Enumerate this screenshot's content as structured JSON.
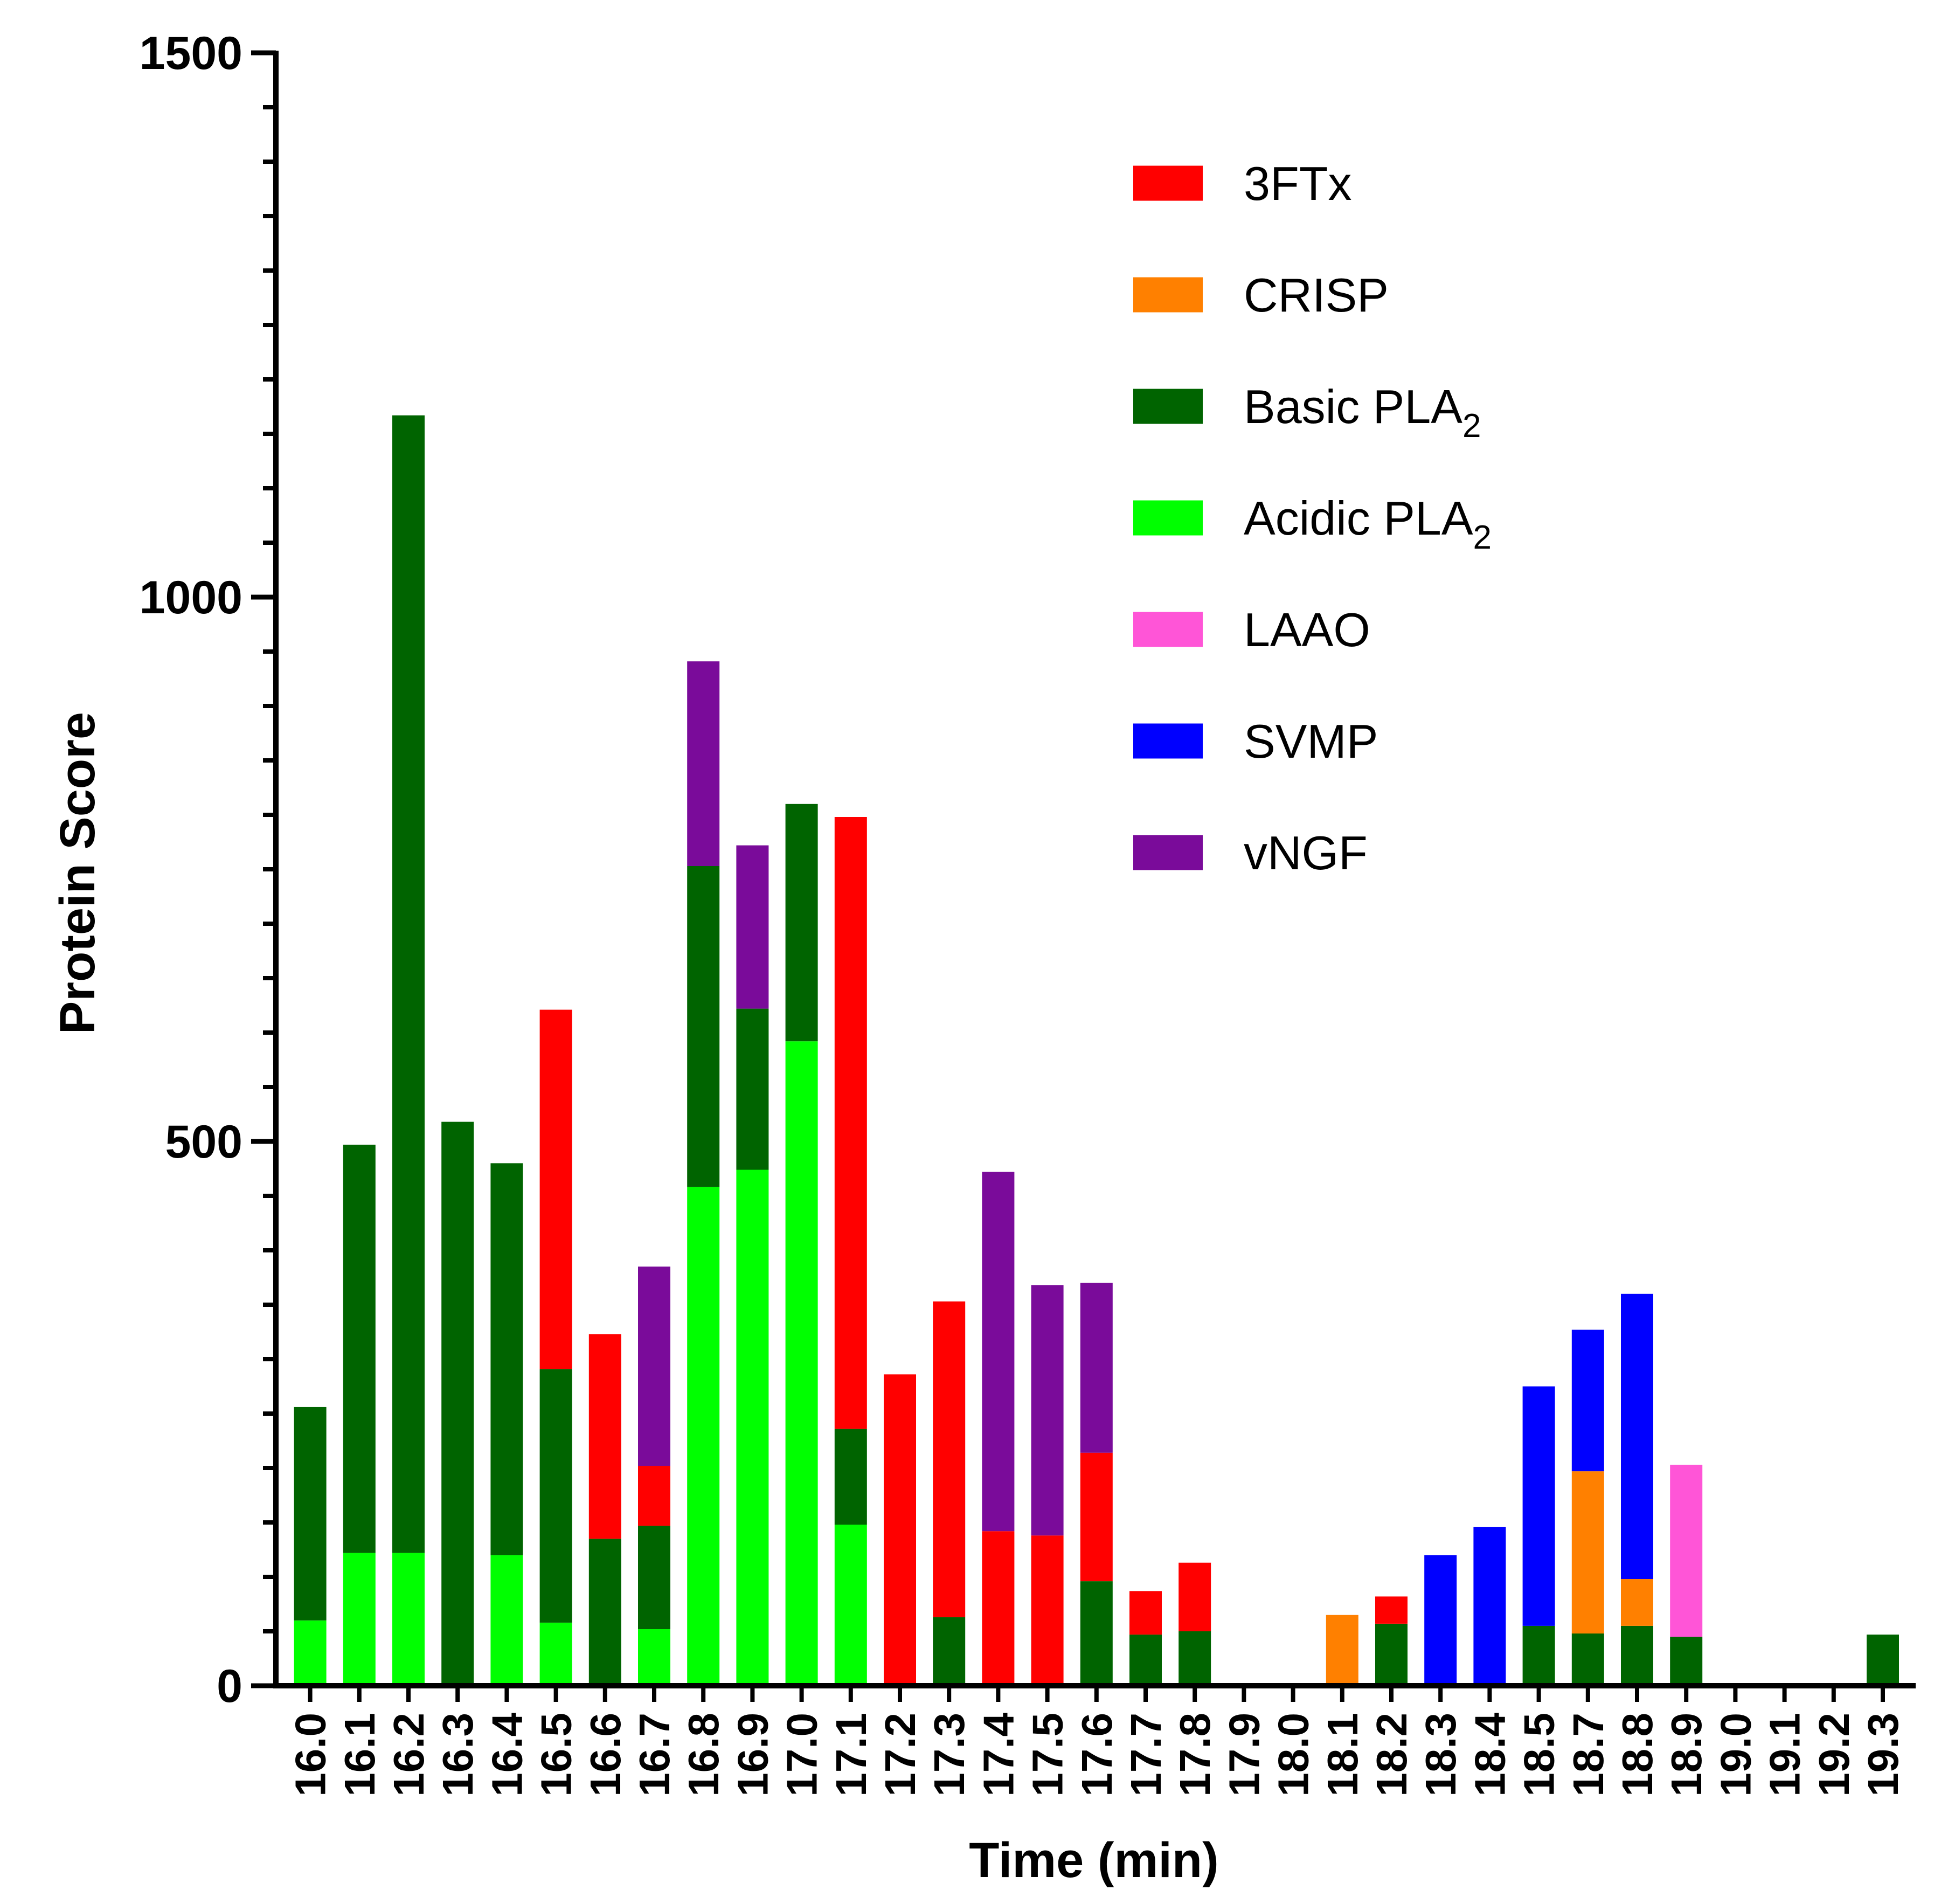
{
  "chart_data": {
    "type": "bar",
    "stacked": true,
    "title": "",
    "xlabel": "Time (min)",
    "ylabel": "Protein Score",
    "ylim": [
      0,
      1500
    ],
    "yticks": [
      "0",
      "500",
      "1000",
      "1500"
    ],
    "legend_position": "top-right",
    "categories": [
      "16.0",
      "16.1",
      "16.2",
      "16.3",
      "16.4",
      "16.5",
      "16.6",
      "16.7",
      "16.8",
      "16.9",
      "17.0",
      "17.1",
      "17.2",
      "17.3",
      "17.4",
      "17.5",
      "17.6",
      "17.7",
      "17.8",
      "17.9",
      "18.0",
      "18.1",
      "18.2",
      "18.3",
      "18.4",
      "18.5",
      "18.7",
      "18.8",
      "18.9",
      "19.0",
      "19.1",
      "19.2",
      "19.3"
    ],
    "series": [
      {
        "name": "Acidic PLA",
        "sub": "2",
        "color": "#00ff00",
        "values": [
          60,
          122,
          122,
          0,
          120,
          58,
          0,
          52,
          458,
          474,
          592,
          148,
          0,
          0,
          0,
          0,
          0,
          0,
          0,
          0,
          0,
          0,
          0,
          0,
          0,
          0,
          0,
          0,
          0,
          0,
          0,
          0,
          0
        ]
      },
      {
        "name": "Basic PLA",
        "sub": "2",
        "color": "#006400",
        "values": [
          196,
          375,
          1045,
          518,
          360,
          233,
          135,
          95,
          295,
          148,
          218,
          88,
          0,
          63,
          0,
          0,
          96,
          47,
          50,
          0,
          0,
          0,
          57,
          0,
          0,
          55,
          48,
          55,
          45,
          0,
          0,
          0,
          47
        ]
      },
      {
        "name": "3FTx",
        "sub": "",
        "color": "#ff0000",
        "values": [
          0,
          0,
          0,
          0,
          0,
          330,
          188,
          55,
          0,
          0,
          0,
          562,
          286,
          290,
          142,
          138,
          118,
          40,
          63,
          0,
          0,
          0,
          25,
          0,
          0,
          0,
          0,
          0,
          0,
          0,
          0,
          0,
          0
        ]
      },
      {
        "name": "CRISP",
        "sub": "",
        "color": "#ff8000",
        "values": [
          0,
          0,
          0,
          0,
          0,
          0,
          0,
          0,
          0,
          0,
          0,
          0,
          0,
          0,
          0,
          0,
          0,
          0,
          0,
          0,
          0,
          65,
          0,
          0,
          0,
          0,
          149,
          43,
          0,
          0,
          0,
          0,
          0
        ]
      },
      {
        "name": "LAAO",
        "sub": "",
        "color": "#ff55d7",
        "values": [
          0,
          0,
          0,
          0,
          0,
          0,
          0,
          0,
          0,
          0,
          0,
          0,
          0,
          0,
          0,
          0,
          0,
          0,
          0,
          0,
          0,
          0,
          0,
          0,
          0,
          0,
          0,
          0,
          158,
          0,
          0,
          0,
          0
        ]
      },
      {
        "name": "SVMP",
        "sub": "",
        "color": "#0000ff",
        "values": [
          0,
          0,
          0,
          0,
          0,
          0,
          0,
          0,
          0,
          0,
          0,
          0,
          0,
          0,
          0,
          0,
          0,
          0,
          0,
          0,
          0,
          0,
          0,
          120,
          146,
          220,
          130,
          262,
          0,
          0,
          0,
          0,
          0
        ]
      },
      {
        "name": "vNGF",
        "sub": "",
        "color": "#7a0b9a",
        "values": [
          0,
          0,
          0,
          0,
          0,
          0,
          0,
          183,
          188,
          150,
          0,
          0,
          0,
          0,
          330,
          230,
          156,
          0,
          0,
          0,
          0,
          0,
          0,
          0,
          0,
          0,
          0,
          0,
          0,
          0,
          0,
          0,
          0
        ]
      }
    ],
    "legend_order": [
      "3FTx",
      "CRISP",
      "Basic PLA",
      "Acidic PLA",
      "LAAO",
      "SVMP",
      "vNGF"
    ]
  }
}
